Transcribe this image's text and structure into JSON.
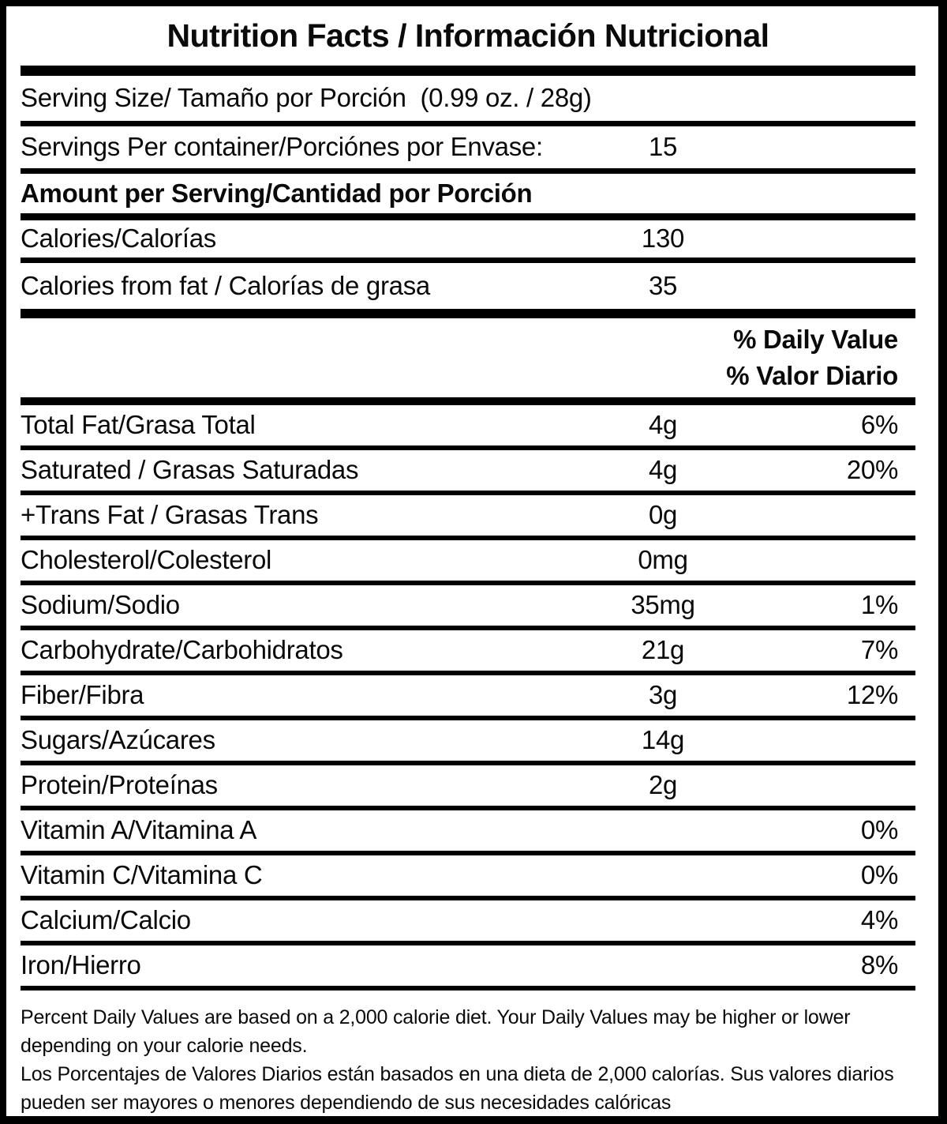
{
  "title": "Nutrition Facts / Información Nutricional",
  "serving": {
    "serving_size_label": "Serving Size/ Tamaño por Porción  (0.99 oz. / 28g)",
    "servings_per_container_label": "Servings Per container/Porciónes por Envase:",
    "servings_per_container_value": "15",
    "amount_per_serving_label": "Amount per Serving/Cantidad por Porción"
  },
  "calories": [
    {
      "label": "Calories/Calorías",
      "amount": "130"
    },
    {
      "label": "Calories from fat / Calorías de grasa",
      "amount": "35"
    }
  ],
  "daily_value_header": {
    "english": "% Daily Value",
    "spanish": "% Valor Diario"
  },
  "nutrients": [
    {
      "label": "Total Fat/Grasa Total",
      "amount": "4g",
      "dv": "6%"
    },
    {
      "label": "Saturated / Grasas Saturadas",
      "amount": "4g",
      "dv": "20%"
    },
    {
      "label": "+Trans Fat / Grasas Trans",
      "amount": "0g",
      "dv": ""
    },
    {
      "label": "Cholesterol/Colesterol",
      "amount": "0mg",
      "dv": ""
    },
    {
      "label": "Sodium/Sodio",
      "amount": "35mg",
      "dv": "1%"
    },
    {
      "label": "Carbohydrate/Carbohidratos",
      "amount": "21g",
      "dv": "7%"
    },
    {
      "label": "Fiber/Fibra",
      "amount": "3g",
      "dv": "12%"
    },
    {
      "label": "Sugars/Azúcares",
      "amount": "14g",
      "dv": ""
    },
    {
      "label": "Protein/Proteínas",
      "amount": "2g",
      "dv": ""
    },
    {
      "label": "Vitamin A/Vitamina A",
      "amount": "",
      "dv": "0%"
    },
    {
      "label": "Vitamin C/Vitamina C",
      "amount": "",
      "dv": "0%"
    },
    {
      "label": "Calcium/Calcio",
      "amount": "",
      "dv": "4%"
    },
    {
      "label": "Iron/Hierro",
      "amount": "",
      "dv": "8%"
    }
  ],
  "footnote": {
    "english": "Percent Daily Values are based on a 2,000 calorie diet. Your Daily Values may be higher or lower depending on your calorie needs.",
    "spanish": "Los Porcentajes de Valores Diarios están basados en una dieta de 2,000 calorías. Sus valores diarios pueden ser mayores o menores dependiendo de sus necesidades calóricas"
  },
  "colors": {
    "text": "#0a0a0a",
    "background": "#ffffff",
    "border": "#000000"
  }
}
